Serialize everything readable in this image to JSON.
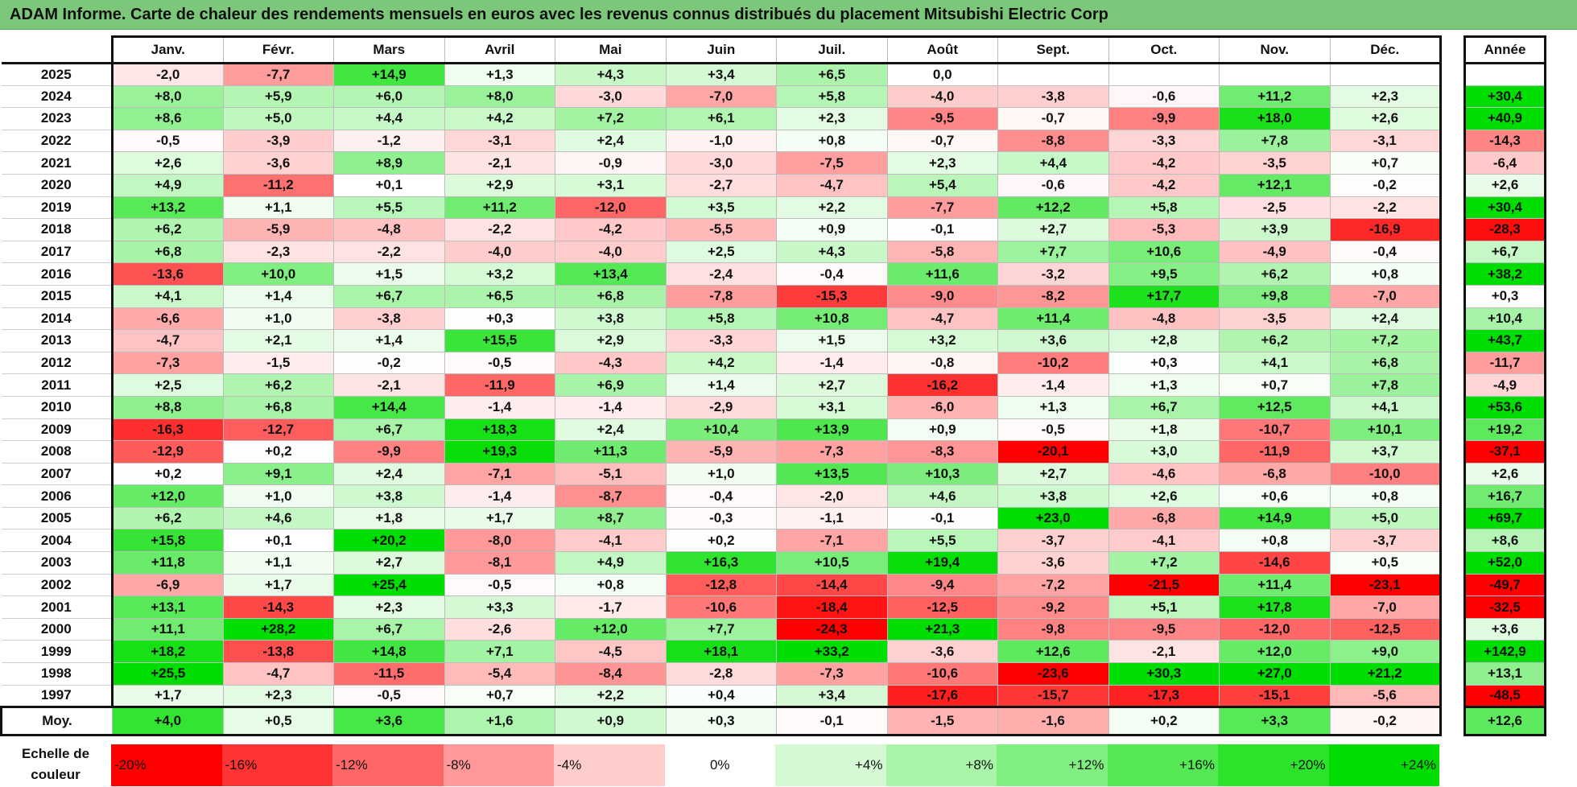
{
  "title": "ADAM Informe. Carte de chaleur des rendements mensuels en euros avec les revenus connus distribués du placement Mitsubishi Electric Corp",
  "colors": {
    "titlebar": "#7cc77a",
    "negative_max": "#ff0000",
    "neutral": "#ffffff",
    "positive_max": "#00dd00"
  },
  "chart_data": {
    "type": "heatmap",
    "title": "ADAM Informe. Carte de chaleur des rendements mensuels en euros avec les revenus connus distribués du placement Mitsubishi Electric Corp",
    "columns": [
      "Janv.",
      "Févr.",
      "Mars",
      "Avril",
      "Mai",
      "Juin",
      "Juil.",
      "Août",
      "Sept.",
      "Oct.",
      "Nov.",
      "Déc."
    ],
    "annual_header": "Année",
    "rows": [
      {
        "year": "2025",
        "months": [
          "-2,0",
          "-7,7",
          "+14,9",
          "+1,3",
          "+4,3",
          "+3,4",
          "+6,5",
          "0,0",
          "",
          "",
          "",
          ""
        ],
        "annual": ""
      },
      {
        "year": "2024",
        "months": [
          "+8,0",
          "+5,9",
          "+6,0",
          "+8,0",
          "-3,0",
          "-7,0",
          "+5,8",
          "-4,0",
          "-3,8",
          "-0,6",
          "+11,2",
          "+2,3"
        ],
        "annual": "+30,4"
      },
      {
        "year": "2023",
        "months": [
          "+8,6",
          "+5,0",
          "+4,4",
          "+4,2",
          "+7,2",
          "+6,1",
          "+2,3",
          "-9,5",
          "-0,7",
          "-9,9",
          "+18,0",
          "+2,6"
        ],
        "annual": "+40,9"
      },
      {
        "year": "2022",
        "months": [
          "-0,5",
          "-3,9",
          "-1,2",
          "-3,1",
          "+2,4",
          "-1,0",
          "+0,8",
          "-0,7",
          "-8,8",
          "-3,3",
          "+7,8",
          "-3,1"
        ],
        "annual": "-14,3"
      },
      {
        "year": "2021",
        "months": [
          "+2,6",
          "-3,6",
          "+8,9",
          "-2,1",
          "-0,9",
          "-3,0",
          "-7,5",
          "+2,3",
          "+4,4",
          "-4,2",
          "-3,5",
          "+0,7"
        ],
        "annual": "-6,4"
      },
      {
        "year": "2020",
        "months": [
          "+4,9",
          "-11,2",
          "+0,1",
          "+2,9",
          "+3,1",
          "-2,7",
          "-4,7",
          "+5,4",
          "-0,6",
          "-4,2",
          "+12,1",
          "-0,2"
        ],
        "annual": "+2,6"
      },
      {
        "year": "2019",
        "months": [
          "+13,2",
          "+1,1",
          "+5,5",
          "+11,2",
          "-12,0",
          "+3,5",
          "+2,2",
          "-7,7",
          "+12,2",
          "+5,8",
          "-2,5",
          "-2,2"
        ],
        "annual": "+30,4"
      },
      {
        "year": "2018",
        "months": [
          "+6,2",
          "-5,9",
          "-4,8",
          "-2,2",
          "-4,2",
          "-5,5",
          "+0,9",
          "-0,1",
          "+2,7",
          "-5,3",
          "+3,9",
          "-16,9"
        ],
        "annual": "-28,3"
      },
      {
        "year": "2017",
        "months": [
          "+6,8",
          "-2,3",
          "-2,2",
          "-4,0",
          "-4,0",
          "+2,5",
          "+4,3",
          "-5,8",
          "+7,7",
          "+10,6",
          "-4,9",
          "-0,4"
        ],
        "annual": "+6,7"
      },
      {
        "year": "2016",
        "months": [
          "-13,6",
          "+10,0",
          "+1,5",
          "+3,2",
          "+13,4",
          "-2,4",
          "-0,4",
          "+11,6",
          "-3,2",
          "+9,5",
          "+6,2",
          "+0,8"
        ],
        "annual": "+38,2"
      },
      {
        "year": "2015",
        "months": [
          "+4,1",
          "+1,4",
          "+6,7",
          "+6,5",
          "+6,8",
          "-7,8",
          "-15,3",
          "-9,0",
          "-8,2",
          "+17,7",
          "+9,8",
          "-7,0"
        ],
        "annual": "+0,3"
      },
      {
        "year": "2014",
        "months": [
          "-6,6",
          "+1,0",
          "-3,8",
          "+0,3",
          "+3,8",
          "+5,8",
          "+10,8",
          "-4,7",
          "+11,4",
          "-4,8",
          "-3,5",
          "+2,4"
        ],
        "annual": "+10,4"
      },
      {
        "year": "2013",
        "months": [
          "-4,7",
          "+2,1",
          "+1,4",
          "+15,5",
          "+2,9",
          "-3,3",
          "+1,5",
          "+3,2",
          "+3,6",
          "+2,8",
          "+6,2",
          "+7,2"
        ],
        "annual": "+43,7"
      },
      {
        "year": "2012",
        "months": [
          "-7,3",
          "-1,5",
          "-0,2",
          "-0,5",
          "-4,3",
          "+4,2",
          "-1,4",
          "-0,8",
          "-10,2",
          "+0,3",
          "+4,1",
          "+6,8"
        ],
        "annual": "-11,7"
      },
      {
        "year": "2011",
        "months": [
          "+2,5",
          "+6,2",
          "-2,1",
          "-11,9",
          "+6,9",
          "+1,4",
          "+2,7",
          "-16,2",
          "-1,4",
          "+1,3",
          "+0,7",
          "+7,8"
        ],
        "annual": "-4,9"
      },
      {
        "year": "2010",
        "months": [
          "+8,8",
          "+6,8",
          "+14,4",
          "-1,4",
          "-1,4",
          "-2,9",
          "+3,1",
          "-6,0",
          "+1,3",
          "+6,7",
          "+12,5",
          "+4,1"
        ],
        "annual": "+53,6"
      },
      {
        "year": "2009",
        "months": [
          "-16,3",
          "-12,7",
          "+6,7",
          "+18,3",
          "+2,4",
          "+10,4",
          "+13,9",
          "+0,9",
          "-0,5",
          "+1,8",
          "-10,7",
          "+10,1"
        ],
        "annual": "+19,2"
      },
      {
        "year": "2008",
        "months": [
          "-12,9",
          "+0,2",
          "-9,9",
          "+19,3",
          "+11,3",
          "-5,9",
          "-7,3",
          "-8,3",
          "-20,1",
          "+3,0",
          "-11,9",
          "+3,7"
        ],
        "annual": "-37,1"
      },
      {
        "year": "2007",
        "months": [
          "+0,2",
          "+9,1",
          "+2,4",
          "-7,1",
          "-5,1",
          "+1,0",
          "+13,5",
          "+10,3",
          "+2,7",
          "-4,6",
          "-6,8",
          "-10,0"
        ],
        "annual": "+2,6"
      },
      {
        "year": "2006",
        "months": [
          "+12,0",
          "+1,0",
          "+3,8",
          "-1,4",
          "-8,7",
          "-0,4",
          "-2,0",
          "+4,6",
          "+3,8",
          "+2,6",
          "+0,6",
          "+0,8"
        ],
        "annual": "+16,7"
      },
      {
        "year": "2005",
        "months": [
          "+6,2",
          "+4,6",
          "+1,8",
          "+1,7",
          "+8,7",
          "-0,3",
          "-1,1",
          "-0,1",
          "+23,0",
          "-6,8",
          "+14,9",
          "+5,0"
        ],
        "annual": "+69,7"
      },
      {
        "year": "2004",
        "months": [
          "+15,8",
          "+0,1",
          "+20,2",
          "-8,0",
          "-4,1",
          "+0,2",
          "-7,1",
          "+5,5",
          "-3,7",
          "-4,1",
          "+0,8",
          "-3,7"
        ],
        "annual": "+8,6"
      },
      {
        "year": "2003",
        "months": [
          "+11,8",
          "+1,1",
          "+2,7",
          "-8,1",
          "+4,9",
          "+16,3",
          "+10,5",
          "+19,4",
          "-3,6",
          "+7,2",
          "-14,6",
          "+0,5"
        ],
        "annual": "+52,0"
      },
      {
        "year": "2002",
        "months": [
          "-6,9",
          "+1,7",
          "+25,4",
          "-0,5",
          "+0,8",
          "-12,8",
          "-14,4",
          "-9,4",
          "-7,2",
          "-21,5",
          "+11,4",
          "-23,1"
        ],
        "annual": "-49,7"
      },
      {
        "year": "2001",
        "months": [
          "+13,1",
          "-14,3",
          "+2,3",
          "+3,3",
          "-1,7",
          "-10,6",
          "-18,4",
          "-12,5",
          "-9,2",
          "+5,1",
          "+17,8",
          "-7,0"
        ],
        "annual": "-32,5"
      },
      {
        "year": "2000",
        "months": [
          "+11,1",
          "+28,2",
          "+6,7",
          "-2,6",
          "+12,0",
          "+7,7",
          "-24,3",
          "+21,3",
          "-9,8",
          "-9,5",
          "-12,0",
          "-12,5"
        ],
        "annual": "+3,6"
      },
      {
        "year": "1999",
        "months": [
          "+18,2",
          "-13,8",
          "+14,8",
          "+7,1",
          "-4,5",
          "+18,1",
          "+33,2",
          "-3,6",
          "+12,6",
          "-2,1",
          "+12,0",
          "+9,0"
        ],
        "annual": "+142,9"
      },
      {
        "year": "1998",
        "months": [
          "+25,5",
          "-4,7",
          "-11,5",
          "-5,4",
          "-8,4",
          "-2,8",
          "-7,3",
          "-10,6",
          "-23,6",
          "+30,3",
          "+27,0",
          "+21,2"
        ],
        "annual": "+13,1"
      },
      {
        "year": "1997",
        "months": [
          "+1,7",
          "+2,3",
          "-0,5",
          "+0,7",
          "+2,2",
          "+0,4",
          "+3,4",
          "-17,6",
          "-15,7",
          "-17,3",
          "-15,1",
          "-5,6"
        ],
        "annual": "-48,5"
      }
    ],
    "average": {
      "label": "Moy.",
      "months": [
        "+4,0",
        "+0,5",
        "+3,6",
        "+1,6",
        "+0,9",
        "+0,3",
        "-0,1",
        "-1,5",
        "-1,6",
        "+0,2",
        "+3,3",
        "-0,2"
      ],
      "annual": "+12,6"
    },
    "scale": {
      "label": "Echelle de couleur",
      "steps": [
        "-20%",
        "-16%",
        "-12%",
        "-8%",
        "-4%",
        "0%",
        "+4%",
        "+8%",
        "+12%",
        "+16%",
        "+20%",
        "+24%"
      ]
    }
  }
}
